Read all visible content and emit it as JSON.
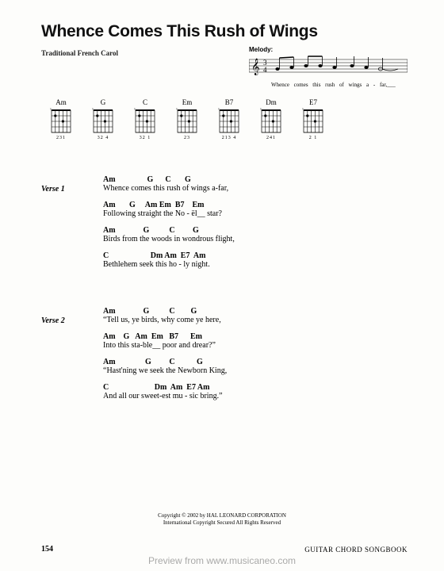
{
  "title": "Whence Comes This Rush of Wings",
  "subtitle": "Traditional French Carol",
  "melody": {
    "label": "Melody:",
    "lyric": "Whence comes this rush of   wings  a - far,___"
  },
  "chords": [
    {
      "name": "Am",
      "fingering": "231"
    },
    {
      "name": "G",
      "fingering": "32   4"
    },
    {
      "name": "C",
      "fingering": "32 1"
    },
    {
      "name": "Em",
      "fingering": "23"
    },
    {
      "name": "B7",
      "fingering": "213 4"
    },
    {
      "name": "Dm",
      "fingering": "241"
    },
    {
      "name": "E7",
      "fingering": "2  1"
    }
  ],
  "verses": [
    {
      "label": "Verse 1",
      "lines": [
        {
          "chords": "Am                G      C       G",
          "lyric": "Whence comes this rush of wings a-far,"
        },
        {
          "chords": "Am       G     Am Em  B7    Em",
          "lyric": "Following straight the No - ël__ star?"
        },
        {
          "chords": "Am              G          C         G",
          "lyric": "Birds from the woods in wondrous flight,"
        },
        {
          "chords": "C                     Dm Am  E7  Am",
          "lyric": "Bethlehem seek this ho - ly night."
        }
      ]
    },
    {
      "label": "Verse 2",
      "lines": [
        {
          "chords": "Am              G          C        G",
          "lyric": "“Tell us, ye birds, why come ye here,"
        },
        {
          "chords": "Am    G   Am  Em   B7      Em",
          "lyric": "Into this sta-ble__ poor and drear?”"
        },
        {
          "chords": "Am               G         C           G",
          "lyric": "“Hast'ning we seek the Newborn King,"
        },
        {
          "chords": "C                       Dm  Am  E7 Am",
          "lyric": "And all our sweet-est mu - sic bring.”"
        }
      ]
    }
  ],
  "copyright": {
    "line1": "Copyright © 2002 by HAL LEONARD CORPORATION",
    "line2": "International Copyright Secured   All Rights Reserved"
  },
  "pageNumber": "154",
  "bookTitle": "GUITAR CHORD SONGBOOK",
  "watermark": "Preview from www.musicaneo.com"
}
